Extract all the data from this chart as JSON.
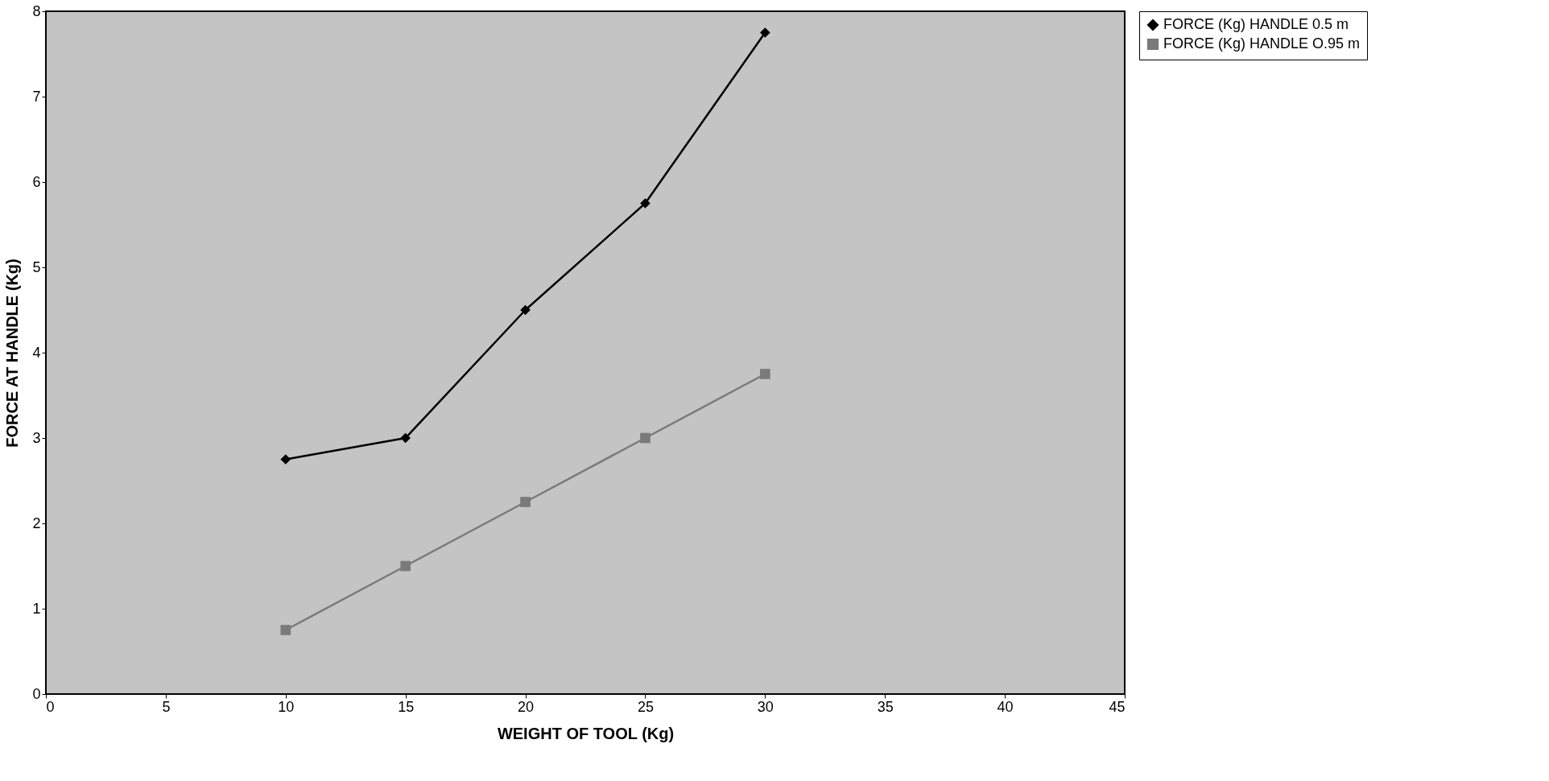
{
  "chart_data": {
    "type": "line",
    "xlabel": "WEIGHT OF TOOL (Kg)",
    "ylabel": "FORCE AT HANDLE (Kg)",
    "xlim": [
      0,
      45
    ],
    "xticks": [
      0,
      5,
      10,
      15,
      20,
      25,
      30,
      35,
      40,
      45
    ],
    "ylim": [
      0,
      8
    ],
    "yticks": [
      0,
      1,
      2,
      3,
      4,
      5,
      6,
      7,
      8
    ],
    "grid": false,
    "legend": "right",
    "line_style": "solid",
    "series": [
      {
        "name": "FORCE (Kg) HANDLE 0.5 m",
        "color": "#000000",
        "marker": "diamond",
        "x": [
          10,
          15,
          20,
          25,
          30
        ],
        "values": [
          2.75,
          3.0,
          4.5,
          5.75,
          7.75
        ]
      },
      {
        "name": "FORCE (Kg) HANDLE O.95 m",
        "color": "#7a7a7a",
        "marker": "square",
        "x": [
          10,
          15,
          20,
          25,
          30
        ],
        "values": [
          0.75,
          1.5,
          2.25,
          3.0,
          3.75
        ]
      }
    ]
  }
}
